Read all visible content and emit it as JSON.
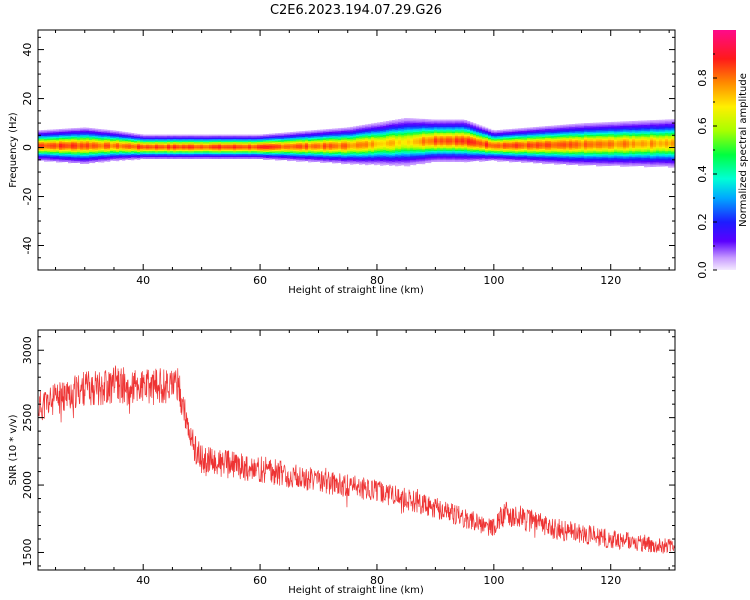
{
  "title": "C2E6.2023.194.07.29.G26",
  "chart_data": [
    {
      "type": "heatmap",
      "xlabel": "Height of straight line (km)",
      "ylabel": "Frequency (Hz)",
      "xlim": [
        22,
        131
      ],
      "ylim": [
        -50,
        48
      ],
      "xticks": [
        40,
        60,
        80,
        100,
        120
      ],
      "yticks": [
        -40,
        -20,
        0,
        20,
        40
      ],
      "ytick_labels": [
        "-40",
        "-20",
        "0",
        "20",
        "40"
      ],
      "colorbar": {
        "label": "Normalized spectral amplitude",
        "range": [
          0,
          1
        ],
        "ticks": [
          0.0,
          0.2,
          0.4,
          0.6,
          0.8
        ],
        "tick_labels": [
          "0.0",
          "0.2",
          "0.4",
          "0.6",
          "0.8"
        ],
        "colormap": "gist_ncar-like"
      },
      "ridge": {
        "description_x": [
          22,
          30,
          35,
          40,
          60,
          75,
          85,
          90,
          95,
          100,
          115,
          131
        ],
        "center_freq_hz": [
          1,
          1,
          1,
          0.5,
          0.5,
          1,
          2.5,
          3,
          3,
          1,
          1.5,
          2
        ],
        "peak_amplitude": [
          0.85,
          0.85,
          0.8,
          0.85,
          0.85,
          0.8,
          0.7,
          0.85,
          0.85,
          0.85,
          0.8,
          0.75
        ],
        "half_width_hz": [
          2.5,
          3,
          2.5,
          2,
          2,
          3,
          4,
          3.5,
          3.5,
          2.5,
          3.5,
          4
        ]
      },
      "grid": false
    },
    {
      "type": "line",
      "xlabel": "Height of straight line (km)",
      "ylabel": "SNR (10 * v/v)",
      "xlim": [
        22,
        131
      ],
      "ylim": [
        1370,
        3150
      ],
      "xticks": [
        40,
        60,
        80,
        100,
        120
      ],
      "yticks": [
        1500,
        2000,
        2500,
        3000
      ],
      "line_color": "#ee3333",
      "trend": {
        "x": [
          22,
          30,
          35,
          40,
          46,
          48,
          50,
          60,
          70,
          80,
          90,
          100,
          102,
          110,
          120,
          131
        ],
        "mean": [
          2580,
          2720,
          2740,
          2720,
          2750,
          2350,
          2180,
          2120,
          2030,
          1960,
          1830,
          1680,
          1800,
          1680,
          1600,
          1540
        ],
        "noise": [
          120,
          130,
          150,
          140,
          130,
          130,
          110,
          100,
          90,
          80,
          80,
          70,
          100,
          80,
          70,
          60
        ]
      },
      "grid": false
    }
  ]
}
